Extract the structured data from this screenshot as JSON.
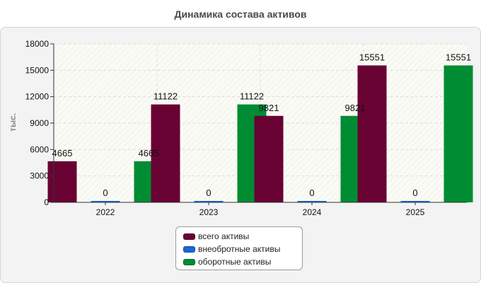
{
  "chart_data": {
    "type": "bar",
    "title": "Динамика состава активов",
    "ylabel": "тыс.",
    "xlabel": "",
    "categories": [
      "2022",
      "2023",
      "2024",
      "2025"
    ],
    "series": [
      {
        "name": "всего активы",
        "values": [
          4665,
          11122,
          9821,
          15551
        ],
        "color": "#680233"
      },
      {
        "name": "внеобротные активы",
        "values": [
          0,
          0,
          0,
          0
        ],
        "color": "#1a66d6"
      },
      {
        "name": "оборотные активы",
        "values": [
          4665,
          11122,
          9821,
          15551
        ],
        "color": "#008c33"
      }
    ],
    "ylim": [
      0,
      18000
    ],
    "yticks": [
      0,
      3000,
      6000,
      9000,
      12000,
      15000,
      18000
    ],
    "grid": true,
    "legend_position": "bottom-center"
  }
}
